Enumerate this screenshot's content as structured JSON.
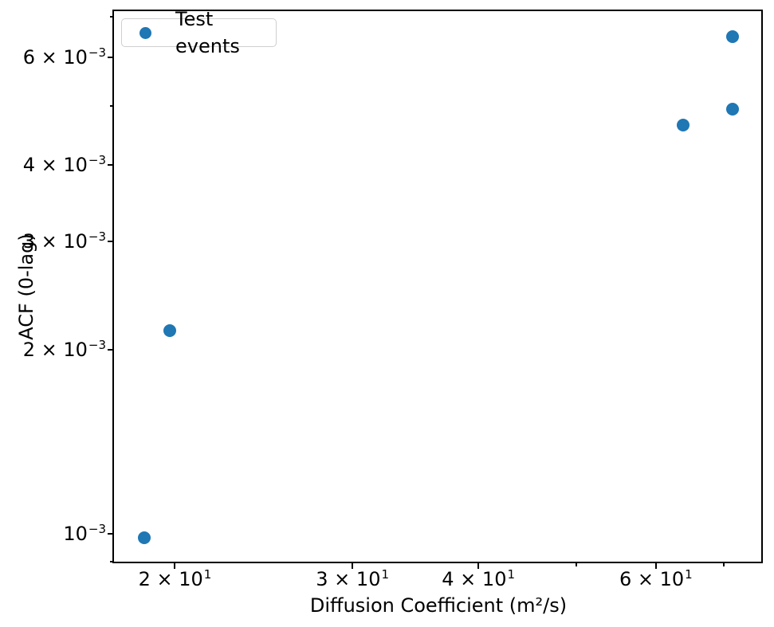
{
  "chart_data": {
    "type": "scatter",
    "title": "",
    "xlabel": "Diffusion Coefficient (m²/s)",
    "ylabel": "ACF (0-lag)",
    "xscale": "log",
    "yscale": "log",
    "xlim": [
      17.4,
      76.6
    ],
    "ylim": [
      0.000895,
      0.00714
    ],
    "grid": false,
    "legend": {
      "label": "Test events",
      "position": "upper-left"
    },
    "series": [
      {
        "name": "Test events",
        "marker": "circle",
        "color": "#1f77b4",
        "points": [
          {
            "x": 18.65,
            "y": 0.000985
          },
          {
            "x": 19.76,
            "y": 0.00215
          },
          {
            "x": 63.8,
            "y": 0.00465
          },
          {
            "x": 71.5,
            "y": 0.00494
          },
          {
            "x": 71.5,
            "y": 0.00649
          }
        ]
      }
    ],
    "x_axis": {
      "major_ticks": [
        {
          "value": 20,
          "label_base": "2 × 10",
          "label_exp": "1"
        },
        {
          "value": 30,
          "label_base": "3 × 10",
          "label_exp": "1"
        },
        {
          "value": 40,
          "label_base": "4 × 10",
          "label_exp": "1"
        },
        {
          "value": 60,
          "label_base": "6 × 10",
          "label_exp": "1"
        }
      ],
      "minor_ticks": [
        50,
        70
      ]
    },
    "y_axis": {
      "major_ticks": [
        {
          "value": 0.001,
          "label_base": "10",
          "label_exp": "−3"
        },
        {
          "value": 0.002,
          "label_base": "2 × 10",
          "label_exp": "−3"
        },
        {
          "value": 0.003,
          "label_base": "3 × 10",
          "label_exp": "−3"
        },
        {
          "value": 0.004,
          "label_base": "4 × 10",
          "label_exp": "−3"
        },
        {
          "value": 0.006,
          "label_base": "6 × 10",
          "label_exp": "−3"
        }
      ],
      "minor_ticks": [
        0.0009,
        0.005,
        0.007
      ]
    }
  }
}
